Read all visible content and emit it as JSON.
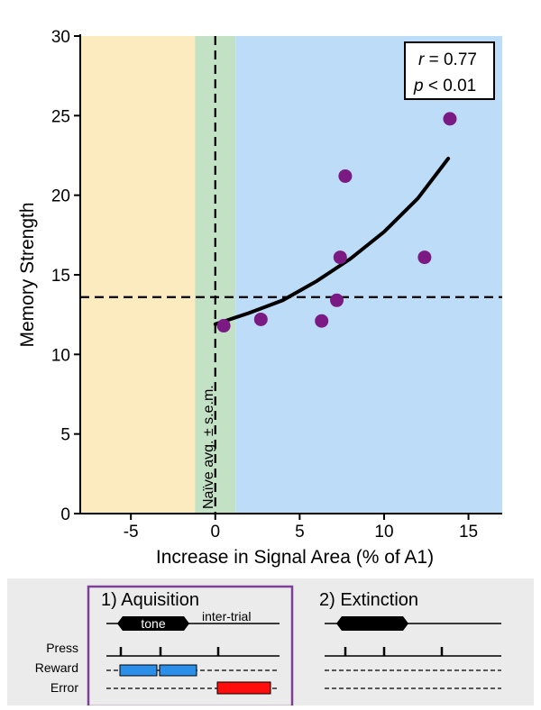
{
  "chart_data": {
    "type": "scatter",
    "title": "",
    "xlabel": "Increase in Signal Area (% of A1)",
    "ylabel": "Memory Strength",
    "xlim": [
      -8,
      17
    ],
    "ylim": [
      0,
      30
    ],
    "xticks": [
      -5,
      0,
      5,
      10,
      15
    ],
    "yticks": [
      0,
      5,
      10,
      15,
      20,
      25,
      30
    ],
    "grid": false,
    "points": [
      {
        "x": 0.5,
        "y": 11.8
      },
      {
        "x": 2.7,
        "y": 12.2
      },
      {
        "x": 6.3,
        "y": 12.1
      },
      {
        "x": 7.2,
        "y": 13.4
      },
      {
        "x": 7.4,
        "y": 16.1
      },
      {
        "x": 7.7,
        "y": 21.2
      },
      {
        "x": 12.4,
        "y": 16.1
      },
      {
        "x": 13.9,
        "y": 24.8
      }
    ],
    "fit_curve": [
      {
        "x": 0.0,
        "y": 11.9
      },
      {
        "x": 2.0,
        "y": 12.6
      },
      {
        "x": 4.0,
        "y": 13.4
      },
      {
        "x": 6.0,
        "y": 14.6
      },
      {
        "x": 8.0,
        "y": 16.0
      },
      {
        "x": 10.0,
        "y": 17.7
      },
      {
        "x": 12.0,
        "y": 19.8
      },
      {
        "x": 13.8,
        "y": 22.3
      }
    ],
    "regions": [
      {
        "from": -8,
        "to": -1.2,
        "color": "#fdebc0"
      },
      {
        "from": -1.2,
        "to": 1.2,
        "color": "#c3e2c5"
      },
      {
        "from": 1.2,
        "to": 17,
        "color": "#bcdcf8"
      }
    ],
    "naive_avg_x": 0,
    "naive_label": "Naïve avg. ± s.e.m.",
    "threshold_y": 13.6,
    "stats": {
      "r_label": "r",
      "r_value": " = 0.77",
      "p_label": "p",
      "p_value": " < 0.01"
    },
    "colors": {
      "point": "#7a1a82",
      "curve": "#000000"
    }
  },
  "schematic": {
    "acquisition_title": "1) Aquisition",
    "extinction_title": "2) Extinction",
    "tone_label": "tone",
    "intertrial_label": "inter-trial",
    "row_labels": [
      "Press",
      "Reward",
      "Error"
    ],
    "colors": {
      "frame": "#7f3f98",
      "reward": "#2b8ee8",
      "error": "#ff0d0d"
    }
  }
}
